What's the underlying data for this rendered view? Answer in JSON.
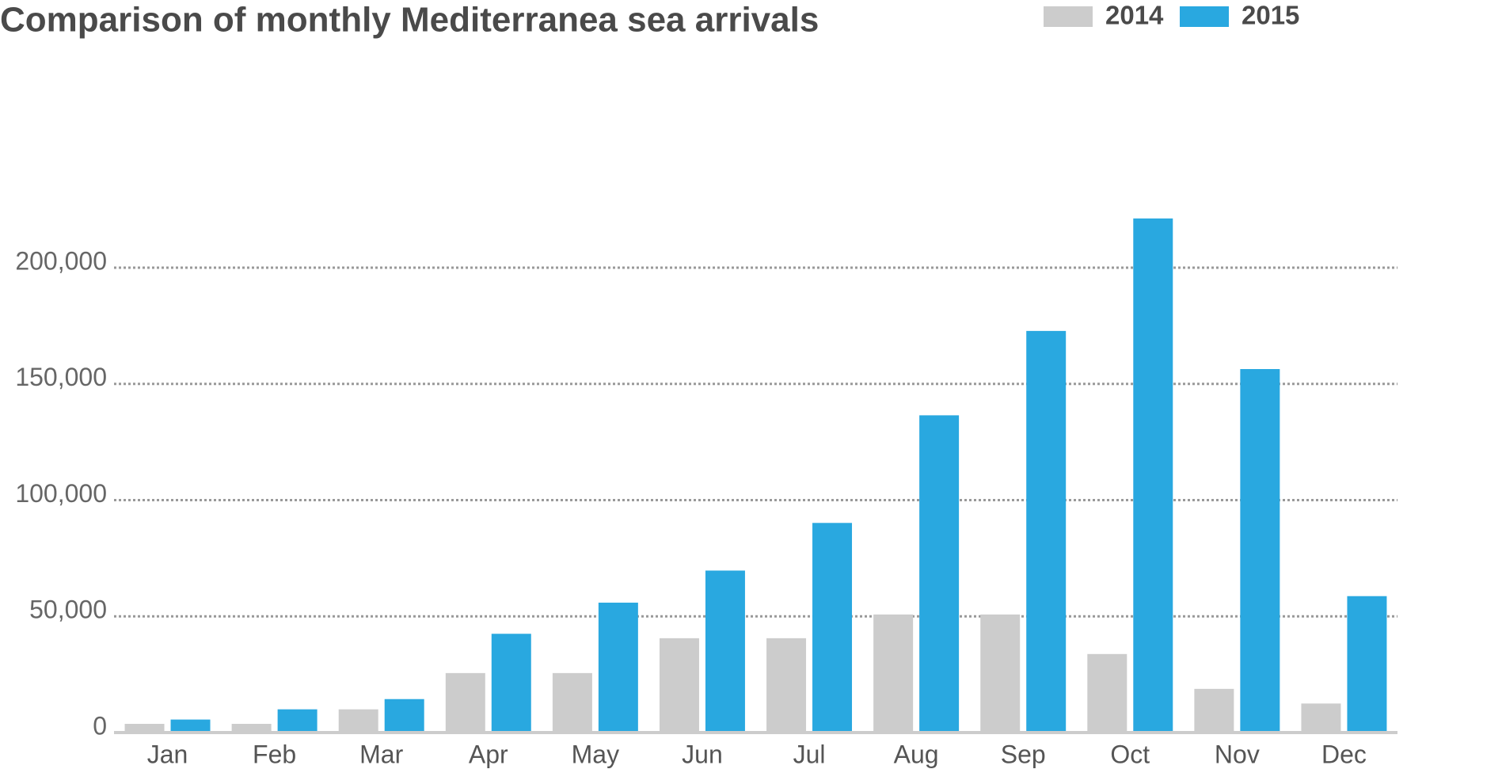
{
  "chart_data": {
    "type": "bar",
    "title": "Comparison of monthly Mediterranea sea arrivals",
    "categories": [
      "Jan",
      "Feb",
      "Mar",
      "Apr",
      "May",
      "Jun",
      "Jul",
      "Aug",
      "Sep",
      "Oct",
      "Nov",
      "Dec"
    ],
    "series": [
      {
        "name": "2014",
        "color": "#cccccc",
        "values": [
          3750,
          3750,
          10000,
          25600,
          25600,
          40600,
          40600,
          50800,
          50800,
          33800,
          18800,
          12500
        ]
      },
      {
        "name": "2015",
        "color": "#29a8e0",
        "values": [
          5600,
          10000,
          14400,
          42500,
          55900,
          69700,
          90200,
          136500,
          172800,
          221200,
          156400,
          58700
        ]
      }
    ],
    "ylim": [
      0,
      230000
    ],
    "yticks": [
      0,
      {
        "value": 50000,
        "label": "50,000"
      },
      {
        "value": 100000,
        "label": "100,000"
      },
      {
        "value": 150000,
        "label": "150,000"
      },
      {
        "value": 200000,
        "label": "200,000"
      }
    ],
    "grid": true
  }
}
